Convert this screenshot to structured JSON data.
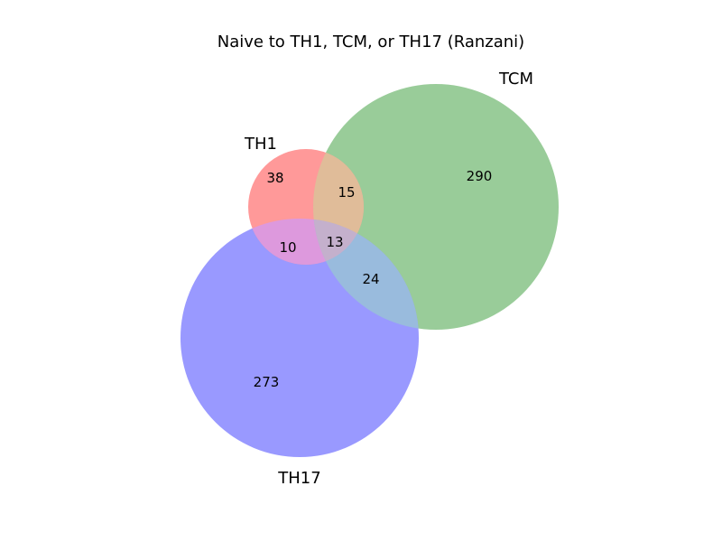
{
  "title": "Naive to TH1, TCM, or TH17 (Ranzani)",
  "sets": {
    "th1": {
      "label": "TH1",
      "color": "#ff9999"
    },
    "tcm": {
      "label": "TCM",
      "color": "#99cc99"
    },
    "th17": {
      "label": "TH17",
      "color": "#9999ff"
    }
  },
  "regions": {
    "th1_only": "38",
    "tcm_only": "290",
    "th17_only": "273",
    "th1_tcm": "15",
    "th1_th17": "10",
    "tcm_th17": "24",
    "all_three": "13"
  }
}
